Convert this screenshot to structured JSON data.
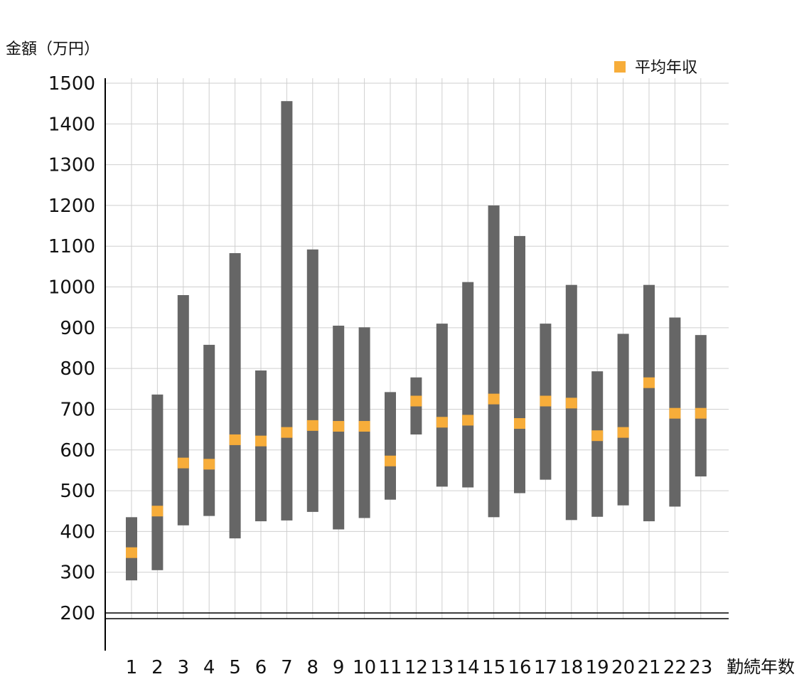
{
  "chart_data": {
    "type": "range_bar",
    "ylabel": "金額（万円）",
    "xlabel": "勤続年数",
    "ylim": [
      150,
      1500
    ],
    "yticks": [
      200,
      300,
      400,
      500,
      600,
      700,
      800,
      900,
      1000,
      1100,
      1200,
      1300,
      1400,
      1500
    ],
    "axis_break_at": 200,
    "categories": [
      "1",
      "2",
      "3",
      "4",
      "5",
      "6",
      "7",
      "8",
      "9",
      "10",
      "11",
      "12",
      "13",
      "14",
      "15",
      "16",
      "17",
      "18",
      "19",
      "20",
      "21",
      "22",
      "23"
    ],
    "legend": {
      "label": "平均年収",
      "placement": "top-right"
    },
    "grid": true,
    "colors": {
      "range": "#666666",
      "mean": "#f7ad3a",
      "grid": "#cfcfcf",
      "axis": "#000000"
    },
    "series": [
      {
        "role": "range",
        "low": [
          280,
          305,
          415,
          438,
          383,
          425,
          427,
          448,
          405,
          433,
          478,
          638,
          510,
          508,
          435,
          494,
          527,
          428,
          436,
          464,
          425,
          461,
          535
        ],
        "high": [
          435,
          736,
          980,
          858,
          1083,
          795,
          1456,
          1092,
          905,
          901,
          742,
          778,
          910,
          1012,
          1200,
          1125,
          910,
          1005,
          793,
          885,
          1005,
          925,
          882
        ]
      },
      {
        "role": "mean",
        "name": "平均年収",
        "values": [
          348,
          450,
          568,
          565,
          625,
          622,
          643,
          660,
          658,
          658,
          573,
          720,
          668,
          673,
          725,
          665,
          720,
          715,
          635,
          643,
          765,
          690,
          690
        ]
      }
    ]
  }
}
